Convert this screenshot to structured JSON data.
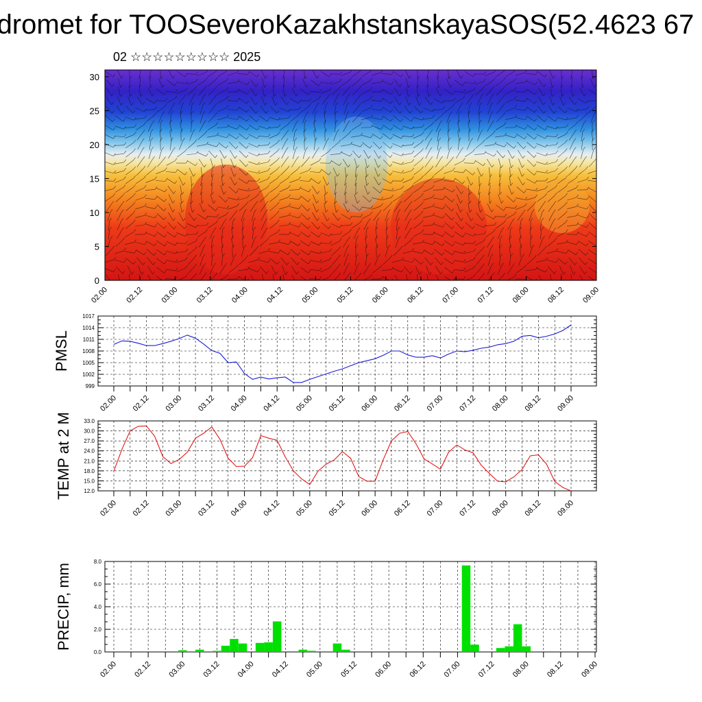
{
  "title": "dromet for TOOSeveroKazakhstanskayaSOS(52.4623 67",
  "subtitle": "02 ☆☆☆☆☆☆☆☆☆ 2025",
  "time_ticks": [
    "02.00",
    "02.12",
    "03.00",
    "03.12",
    "04.00",
    "04.12",
    "05.00",
    "05.12",
    "06.00",
    "06.12",
    "07.00",
    "07.12",
    "08.00",
    "08.12",
    "09.00"
  ],
  "chart_data": [
    {
      "type": "heatmap",
      "title": "",
      "x": [
        "02.00",
        "02.12",
        "03.00",
        "03.12",
        "04.00",
        "04.12",
        "05.00",
        "05.12",
        "06.00",
        "06.12",
        "07.00",
        "07.12",
        "08.00",
        "08.12",
        "09.00"
      ],
      "ylim": [
        0,
        31
      ],
      "yticks": [
        0,
        5,
        10,
        15,
        20,
        25,
        30
      ],
      "colors": [
        "#d91a1a",
        "#f05a1e",
        "#f7a22d",
        "#f7e08a",
        "#dfeaf0",
        "#5ab4e6",
        "#2a4fd6",
        "#3526c8",
        "#5a2ad0"
      ],
      "overlay": "wind barbs"
    },
    {
      "type": "line",
      "ylabel": "PMSL",
      "ylim": [
        999,
        1017
      ],
      "yticks": [
        999,
        1002,
        1005,
        1008,
        1011,
        1014,
        1017
      ],
      "color": "#1a1ad6",
      "x_hours": [
        0,
        3,
        6,
        9,
        12,
        15,
        18,
        21,
        24,
        27,
        30,
        33,
        36,
        39,
        42,
        45,
        48,
        51,
        54,
        57,
        60,
        63,
        66,
        69,
        72,
        75,
        78,
        81,
        84,
        87,
        90,
        93,
        96,
        99,
        102,
        105,
        108,
        111,
        114,
        117,
        120,
        123,
        126,
        129,
        132,
        135,
        138,
        141,
        144,
        147,
        150,
        153,
        156,
        159,
        162,
        165,
        168
      ],
      "values": [
        1009.7,
        1010.6,
        1010.5,
        1010.0,
        1009.4,
        1009.4,
        1009.9,
        1010.5,
        1011.2,
        1012.1,
        1011.3,
        1009.8,
        1008.1,
        1007.4,
        1005.0,
        1005.2,
        1002.2,
        1000.7,
        1001.3,
        1000.8,
        1001.1,
        1001.3,
        999.9,
        999.9,
        1000.7,
        1001.4,
        1002.1,
        1002.8,
        1003.4,
        1004.2,
        1005.0,
        1005.5,
        1006.0,
        1006.9,
        1008.0,
        1008.0,
        1007.0,
        1006.4,
        1006.4,
        1006.8,
        1006.2,
        1007.2,
        1008.0,
        1007.8,
        1008.2,
        1008.7,
        1009.0,
        1009.6,
        1009.9,
        1010.5,
        1011.8,
        1012.0,
        1011.4,
        1011.8,
        1012.4,
        1013.3,
        1014.7
      ]
    },
    {
      "type": "line",
      "ylabel": "TEMP at 2 M",
      "ylim": [
        12.0,
        33.0
      ],
      "yticks": [
        "12.0",
        "15.0",
        "18.0",
        "21.0",
        "24.0",
        "27.0",
        "30.0",
        "33.0"
      ],
      "color": "#e01a1a",
      "x_hours": [
        0,
        3,
        6,
        9,
        12,
        15,
        18,
        21,
        24,
        27,
        30,
        33,
        36,
        39,
        42,
        45,
        48,
        51,
        54,
        57,
        60,
        63,
        66,
        69,
        72,
        75,
        78,
        81,
        84,
        87,
        90,
        93,
        96,
        99,
        102,
        105,
        108,
        111,
        114,
        117,
        120,
        123,
        126,
        129,
        132,
        135,
        138,
        141,
        144,
        147,
        150,
        153,
        156,
        159,
        162,
        165,
        168
      ],
      "values": [
        17.9,
        24.5,
        30.0,
        31.4,
        31.5,
        28.4,
        22.3,
        20.2,
        21.4,
        23.6,
        27.8,
        29.3,
        31.2,
        27.5,
        21.8,
        19.3,
        19.4,
        22.0,
        28.6,
        27.8,
        27.2,
        22.2,
        18.0,
        15.6,
        13.9,
        17.9,
        20.0,
        21.3,
        23.8,
        21.8,
        16.3,
        14.9,
        14.9,
        21.4,
        27.0,
        29.3,
        29.8,
        26.2,
        21.6,
        20.1,
        18.5,
        23.6,
        25.8,
        24.3,
        23.4,
        19.7,
        17.2,
        14.9,
        14.7,
        16.2,
        18.4,
        22.5,
        22.8,
        20.0,
        14.8,
        13.0,
        12.0
      ]
    },
    {
      "type": "bar",
      "ylabel": "PRECIP, mm",
      "ylim": [
        0.0,
        8.0
      ],
      "yticks": [
        "0.0",
        "2.0",
        "4.0",
        "6.0",
        "8.0"
      ],
      "color": "#00e000",
      "x_hours": [
        24,
        30,
        36,
        39,
        42,
        45,
        51,
        54,
        57,
        66,
        69,
        78,
        81,
        123,
        126,
        135,
        138,
        141,
        144
      ],
      "values": [
        0.15,
        0.2,
        0.1,
        0.55,
        1.15,
        0.75,
        0.8,
        0.85,
        2.7,
        0.2,
        0.1,
        0.75,
        0.2,
        7.65,
        0.65,
        0.35,
        0.5,
        2.45,
        0.5
      ]
    }
  ]
}
